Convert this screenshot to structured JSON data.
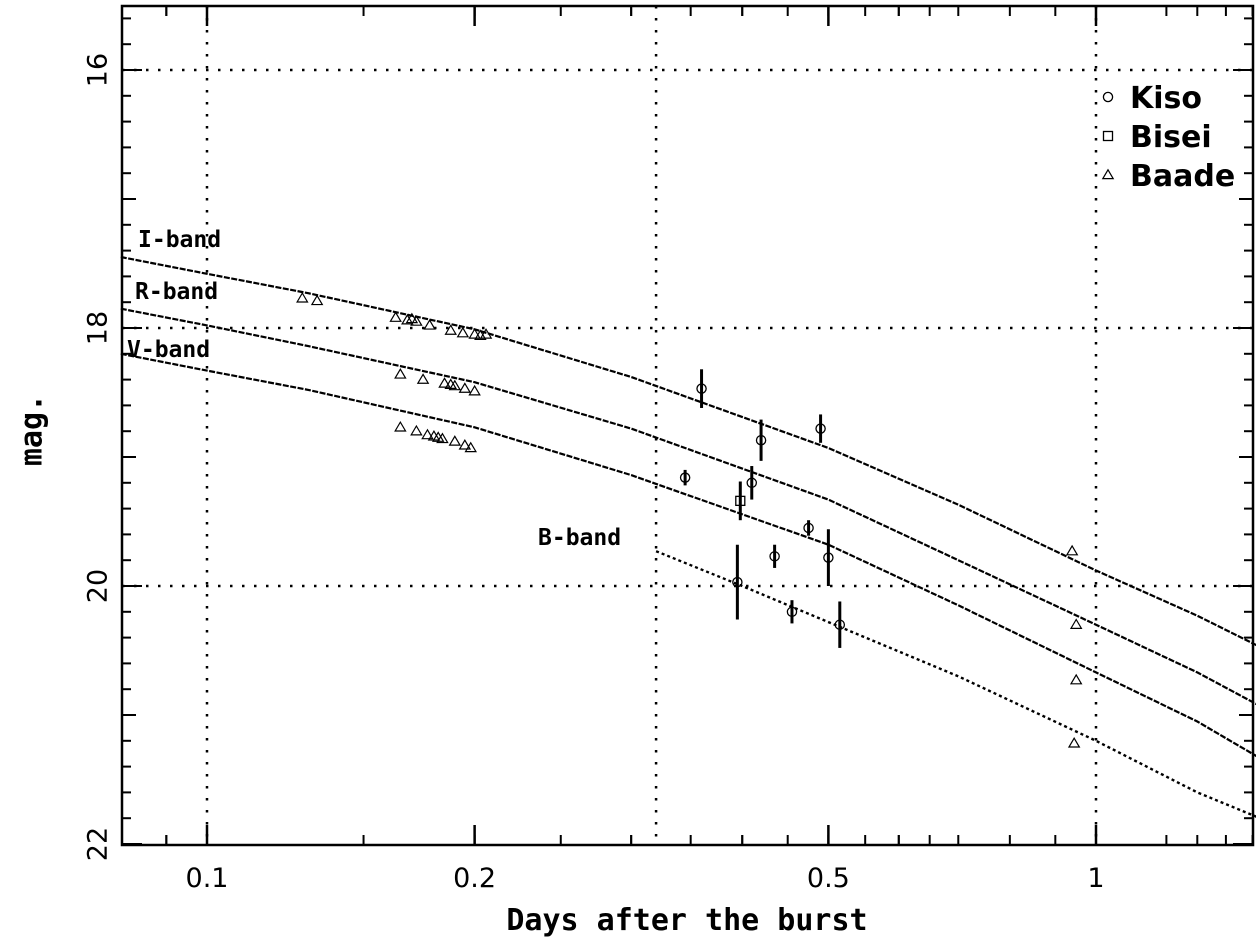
{
  "chart_data": {
    "type": "scatter",
    "xlabel": "Days after the burst",
    "ylabel": "mag.",
    "x_scale": "log",
    "xlim": [
      0.08,
      1.7
    ],
    "ylim": [
      22,
      15.5
    ],
    "y_inverted": true,
    "x_ticks": [
      {
        "value": 0.1,
        "label": "0.1"
      },
      {
        "value": 0.2,
        "label": "0.2"
      },
      {
        "value": 0.5,
        "label": "0.5"
      },
      {
        "value": 1,
        "label": "1"
      }
    ],
    "y_ticks": [
      {
        "value": 16,
        "label": "16"
      },
      {
        "value": 18,
        "label": "18"
      },
      {
        "value": 20,
        "label": "20"
      },
      {
        "value": 22,
        "label": "22"
      }
    ],
    "grid": {
      "x": [
        0.1,
        0.32,
        1
      ],
      "y": [
        16,
        18,
        20
      ]
    },
    "legend": {
      "position": "top-right",
      "entries": [
        {
          "label": "Kiso",
          "marker": "circle"
        },
        {
          "label": "Bisei",
          "marker": "square"
        },
        {
          "label": "Baade",
          "marker": "triangle"
        }
      ]
    },
    "band_labels": [
      {
        "band": "I",
        "text": "I-band"
      },
      {
        "band": "R",
        "text": "R-band"
      },
      {
        "band": "V",
        "text": "V-band"
      },
      {
        "band": "B",
        "text": "B-band"
      }
    ],
    "fits": [
      {
        "band": "I",
        "style": "solid",
        "points": [
          [
            0.08,
            17.45
          ],
          [
            0.1,
            17.58
          ],
          [
            0.13,
            17.73
          ],
          [
            0.2,
            18.01
          ],
          [
            0.3,
            18.38
          ],
          [
            0.5,
            18.93
          ],
          [
            0.7,
            19.37
          ],
          [
            1.0,
            19.88
          ],
          [
            1.3,
            20.23
          ],
          [
            1.7,
            20.63
          ]
        ]
      },
      {
        "band": "R",
        "style": "solid",
        "points": [
          [
            0.08,
            17.85
          ],
          [
            0.1,
            17.98
          ],
          [
            0.13,
            18.14
          ],
          [
            0.2,
            18.42
          ],
          [
            0.3,
            18.78
          ],
          [
            0.5,
            19.33
          ],
          [
            0.7,
            19.8
          ],
          [
            1.0,
            20.3
          ],
          [
            1.3,
            20.67
          ],
          [
            1.7,
            21.1
          ]
        ]
      },
      {
        "band": "V",
        "style": "solid",
        "points": [
          [
            0.08,
            18.2
          ],
          [
            0.1,
            18.33
          ],
          [
            0.13,
            18.48
          ],
          [
            0.2,
            18.77
          ],
          [
            0.3,
            19.14
          ],
          [
            0.5,
            19.68
          ],
          [
            0.7,
            20.15
          ],
          [
            1.0,
            20.67
          ],
          [
            1.3,
            21.05
          ],
          [
            1.7,
            21.52
          ]
        ]
      },
      {
        "band": "B",
        "style": "dotted",
        "points": [
          [
            0.32,
            19.73
          ],
          [
            0.4,
            20.0
          ],
          [
            0.5,
            20.28
          ],
          [
            0.7,
            20.7
          ],
          [
            1.0,
            21.2
          ],
          [
            1.3,
            21.6
          ],
          [
            1.7,
            21.93
          ]
        ]
      }
    ],
    "series": [
      {
        "name": "Kiso",
        "marker": "circle",
        "points": [
          {
            "x": 0.36,
            "y": 18.47,
            "err": 0.15
          },
          {
            "x": 0.42,
            "y": 18.87,
            "err": 0.16
          },
          {
            "x": 0.49,
            "y": 18.78,
            "err": 0.11
          },
          {
            "x": 0.345,
            "y": 19.16,
            "err": 0.06
          },
          {
            "x": 0.41,
            "y": 19.2,
            "err": 0.13
          },
          {
            "x": 0.475,
            "y": 19.55,
            "err": 0.06
          },
          {
            "x": 0.435,
            "y": 19.77,
            "err": 0.09
          },
          {
            "x": 0.5,
            "y": 19.78,
            "err": 0.22
          },
          {
            "x": 0.395,
            "y": 19.97,
            "err": 0.29
          },
          {
            "x": 0.455,
            "y": 20.2,
            "err": 0.09
          },
          {
            "x": 0.515,
            "y": 20.3,
            "err": 0.18
          }
        ]
      },
      {
        "name": "Bisei",
        "marker": "square",
        "points": [
          {
            "x": 0.398,
            "y": 19.34,
            "err": 0.15
          }
        ]
      },
      {
        "name": "Baade",
        "marker": "triangle",
        "points": [
          {
            "x": 0.128,
            "y": 17.77
          },
          {
            "x": 0.133,
            "y": 17.79
          },
          {
            "x": 0.163,
            "y": 17.92
          },
          {
            "x": 0.168,
            "y": 17.94
          },
          {
            "x": 0.17,
            "y": 17.93
          },
          {
            "x": 0.172,
            "y": 17.95
          },
          {
            "x": 0.178,
            "y": 17.98
          },
          {
            "x": 0.188,
            "y": 18.02
          },
          {
            "x": 0.194,
            "y": 18.04
          },
          {
            "x": 0.2,
            "y": 18.05
          },
          {
            "x": 0.203,
            "y": 18.06
          },
          {
            "x": 0.206,
            "y": 18.05
          },
          {
            "x": 0.165,
            "y": 18.36
          },
          {
            "x": 0.175,
            "y": 18.4
          },
          {
            "x": 0.185,
            "y": 18.43
          },
          {
            "x": 0.188,
            "y": 18.44
          },
          {
            "x": 0.19,
            "y": 18.45
          },
          {
            "x": 0.195,
            "y": 18.47
          },
          {
            "x": 0.2,
            "y": 18.49
          },
          {
            "x": 0.165,
            "y": 18.77
          },
          {
            "x": 0.172,
            "y": 18.8
          },
          {
            "x": 0.177,
            "y": 18.83
          },
          {
            "x": 0.18,
            "y": 18.84
          },
          {
            "x": 0.182,
            "y": 18.85
          },
          {
            "x": 0.184,
            "y": 18.86
          },
          {
            "x": 0.19,
            "y": 18.88
          },
          {
            "x": 0.195,
            "y": 18.91
          },
          {
            "x": 0.198,
            "y": 18.93
          },
          {
            "x": 0.94,
            "y": 19.73
          },
          {
            "x": 0.95,
            "y": 20.3
          },
          {
            "x": 0.95,
            "y": 20.73
          },
          {
            "x": 0.945,
            "y": 21.22
          }
        ]
      }
    ]
  }
}
